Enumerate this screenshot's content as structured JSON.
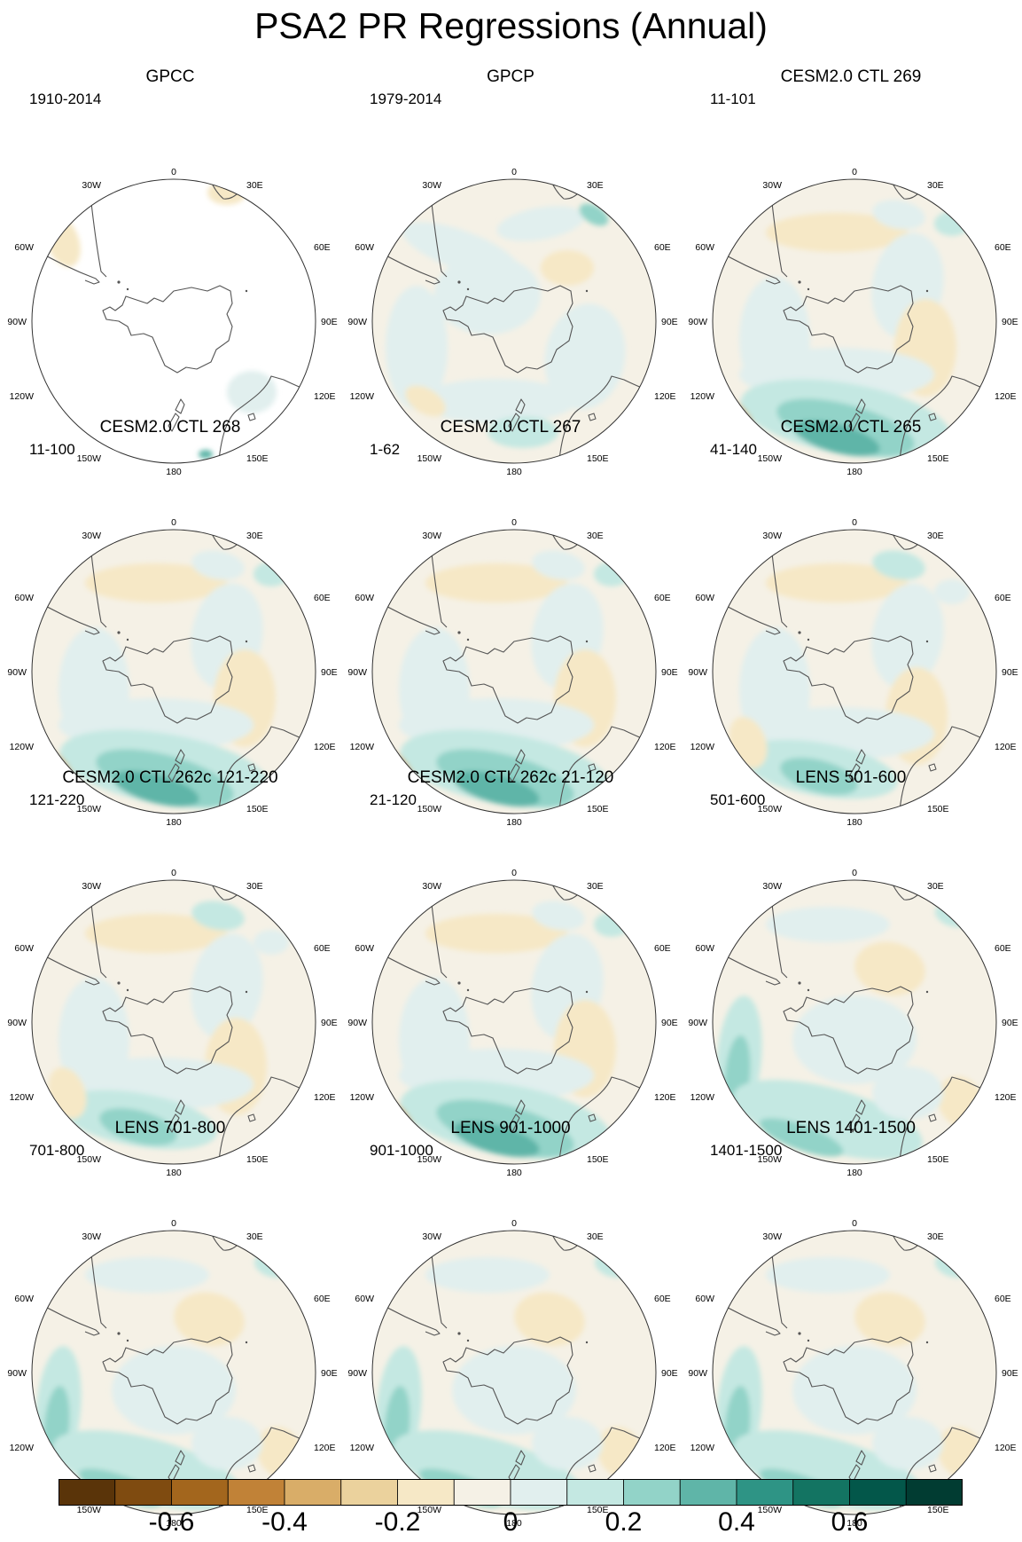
{
  "title": "PSA2 PR Regressions (Annual)",
  "lon_labels": {
    "top": "0",
    "bottom": "180",
    "upper_left": "30W",
    "upper_right": "30E",
    "mid_upper_left": "60W",
    "mid_upper_right": "60E",
    "left": "90W",
    "right": "90E",
    "mid_lower_left": "120W",
    "mid_lower_right": "120E",
    "lower_left": "150W",
    "lower_right": "150E"
  },
  "panels": [
    {
      "title": "GPCC",
      "period": "1910-2014",
      "pattern": "obs_sparse"
    },
    {
      "title": "GPCP",
      "period": "1979-2014",
      "pattern": "obs"
    },
    {
      "title": "CESM2.0 CTL 269",
      "period": "11-101",
      "pattern": "strong"
    },
    {
      "title": "CESM2.0 CTL 268",
      "period": "11-100",
      "pattern": "strong"
    },
    {
      "title": "CESM2.0 CTL 267",
      "period": "1-62",
      "pattern": "strong"
    },
    {
      "title": "CESM2.0 CTL 265",
      "period": "41-140",
      "pattern": "moderate"
    },
    {
      "title": "CESM2.0 CTL 262c 121-220",
      "period": "121-220",
      "pattern": "moderate"
    },
    {
      "title": "CESM2.0 CTL 262c 21-120",
      "period": "21-120",
      "pattern": "strong"
    },
    {
      "title": "LENS 501-600",
      "period": "501-600",
      "pattern": "lens"
    },
    {
      "title": "LENS 701-800",
      "period": "701-800",
      "pattern": "lens"
    },
    {
      "title": "LENS 901-1000",
      "period": "901-1000",
      "pattern": "lens"
    },
    {
      "title": "LENS 1401-1500",
      "period": "1401-1500",
      "pattern": "lens"
    }
  ],
  "colorbar": {
    "colors": [
      "#5a3409",
      "#7f4b10",
      "#a3661d",
      "#c18237",
      "#d9ad68",
      "#ebd29d",
      "#f6e8c6",
      "#f5f1e6",
      "#e1efee",
      "#c4e8e2",
      "#92d3c8",
      "#5fb5a8",
      "#2e9485",
      "#137462",
      "#03574a",
      "#013c32"
    ],
    "tick_labels": [
      "-0.6",
      "-0.4",
      "-0.2",
      "0",
      "0.2",
      "0.4",
      "0.6"
    ],
    "tick_values": [
      -0.6,
      -0.4,
      -0.2,
      0,
      0.2,
      0.4,
      0.6
    ]
  }
}
